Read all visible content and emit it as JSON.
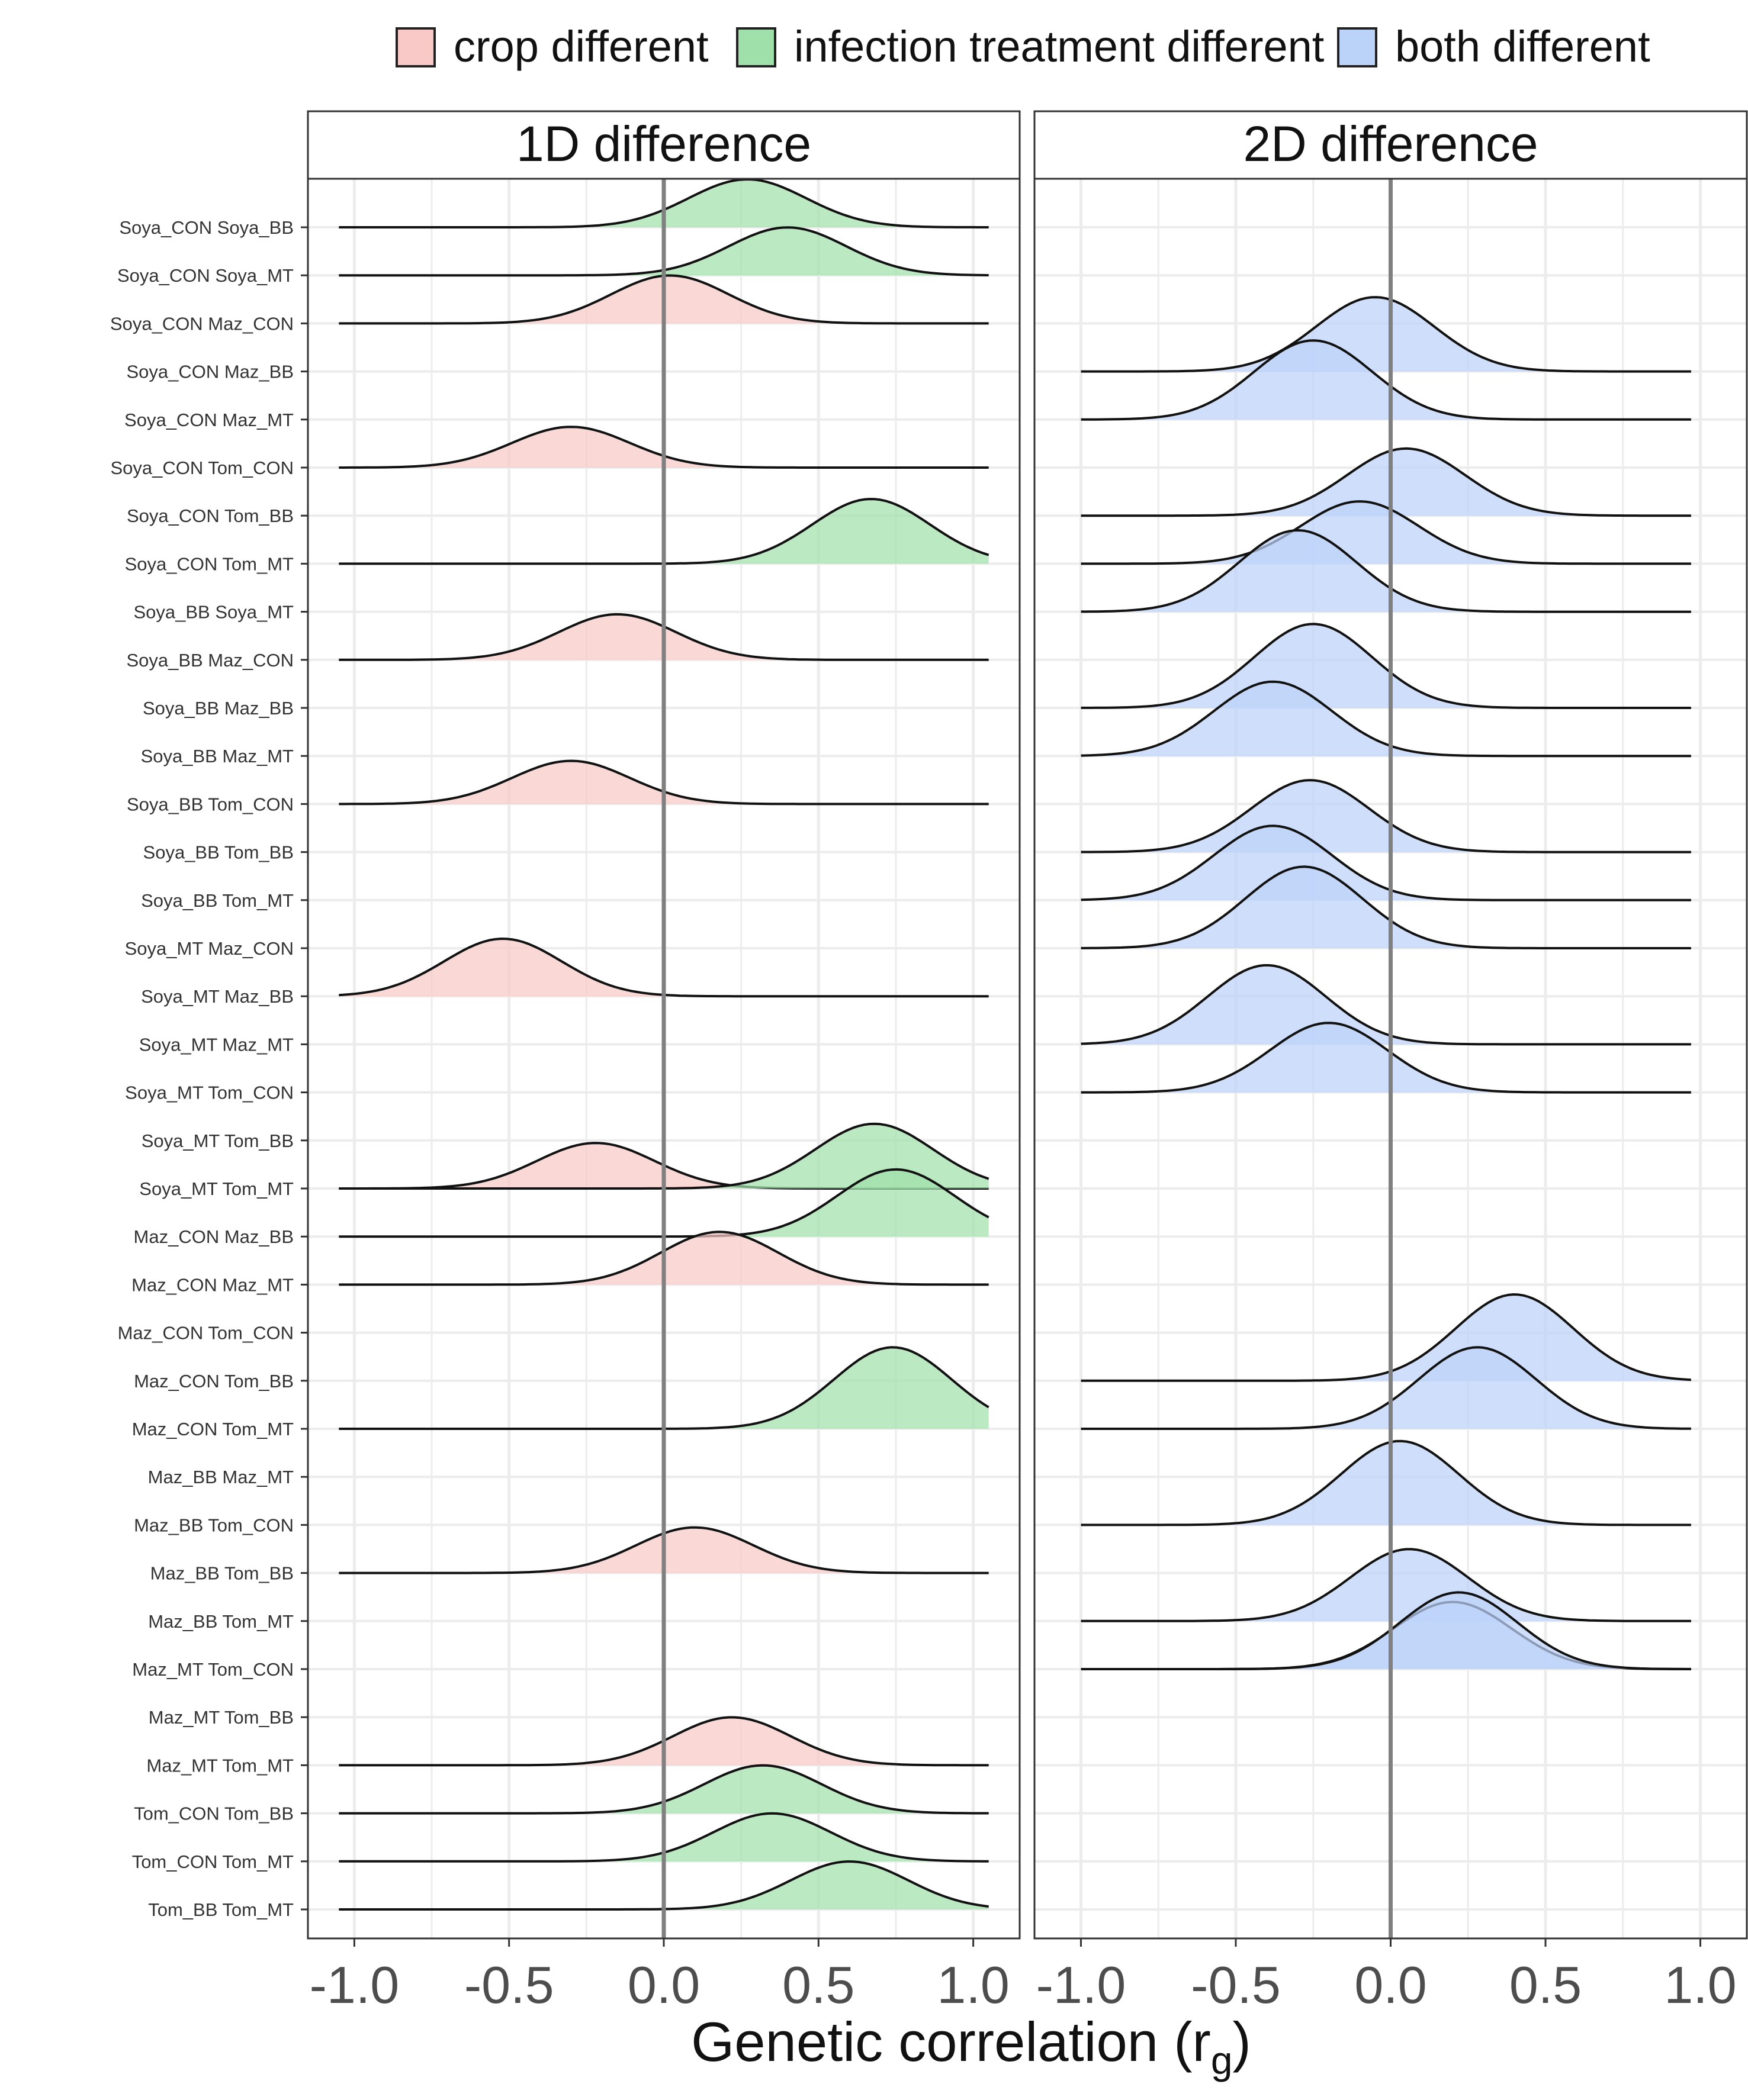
{
  "chart_data": {
    "type": "ridgeline",
    "xlabel": "Genetic correlation (r",
    "xlabel_sub": "g",
    "xlabel_close": ")",
    "xlim": [
      -1.15,
      1.15
    ],
    "x_ticks": [
      -1.0,
      -0.5,
      0.0,
      0.5,
      1.0
    ],
    "x_tick_labels": [
      "-1.0",
      "-0.5",
      "0.0",
      "0.5",
      "1.0"
    ],
    "reference_line_x": 0.0,
    "grid": true,
    "legend_position": "top",
    "legend": [
      {
        "key": "crop",
        "label": "crop different",
        "fill": "#f8c9c6"
      },
      {
        "key": "infection",
        "label": "infection treatment different",
        "fill": "#9fe0aa"
      },
      {
        "key": "both",
        "label": "both different",
        "fill": "#bcd3f9"
      }
    ],
    "panels": [
      {
        "title": "1D difference",
        "range": [
          -1.05,
          1.05
        ]
      },
      {
        "title": "2D difference",
        "range": [
          -1.0,
          0.97
        ]
      }
    ],
    "categories": [
      "Soya_CON Soya_BB",
      "Soya_CON Soya_MT",
      "Soya_CON Maz_CON",
      "Soya_CON Maz_BB",
      "Soya_CON Maz_MT",
      "Soya_CON Tom_CON",
      "Soya_CON Tom_BB",
      "Soya_CON Tom_MT",
      "Soya_BB Soya_MT",
      "Soya_BB Maz_CON",
      "Soya_BB Maz_BB",
      "Soya_BB Maz_MT",
      "Soya_BB Tom_CON",
      "Soya_BB Tom_BB",
      "Soya_BB Tom_MT",
      "Soya_MT Maz_CON",
      "Soya_MT Maz_BB",
      "Soya_MT Maz_MT",
      "Soya_MT Tom_CON",
      "Soya_MT Tom_BB",
      "Soya_MT Tom_MT",
      "Maz_CON Maz_BB",
      "Maz_CON Maz_MT",
      "Maz_CON Tom_CON",
      "Maz_CON Tom_BB",
      "Maz_CON Tom_MT",
      "Maz_BB Maz_MT",
      "Maz_BB Tom_CON",
      "Maz_BB Tom_BB",
      "Maz_BB Tom_MT",
      "Maz_MT Tom_CON",
      "Maz_MT Tom_BB",
      "Maz_MT Tom_MT",
      "Tom_CON Tom_BB",
      "Tom_CON Tom_MT",
      "Tom_BB Tom_MT"
    ],
    "series": [
      {
        "category": "Soya_CON Soya_BB",
        "panel": 0,
        "group": "infection",
        "peak": 0.27,
        "height": 1.0
      },
      {
        "category": "Soya_CON Soya_MT",
        "panel": 0,
        "group": "infection",
        "peak": 0.4,
        "height": 1.0
      },
      {
        "category": "Soya_CON Maz_CON",
        "panel": 0,
        "group": "crop",
        "peak": 0.02,
        "height": 1.0
      },
      {
        "category": "Soya_CON Maz_BB",
        "panel": 1,
        "group": "both",
        "peak": -0.05,
        "height": 1.55
      },
      {
        "category": "Soya_CON Maz_MT",
        "panel": 1,
        "group": "both",
        "peak": -0.25,
        "height": 1.65
      },
      {
        "category": "Soya_CON Tom_CON",
        "panel": 0,
        "group": "crop",
        "peak": -0.3,
        "height": 0.85
      },
      {
        "category": "Soya_CON Tom_BB",
        "panel": 1,
        "group": "both",
        "peak": 0.05,
        "height": 1.4
      },
      {
        "category": "Soya_CON Tom_MT",
        "panel": 0,
        "group": "infection",
        "peak": 0.67,
        "height": 1.35
      },
      {
        "category": "Soya_CON Tom_MT",
        "panel": 1,
        "group": "both",
        "peak": -0.1,
        "height": 1.3
      },
      {
        "category": "Soya_BB Soya_MT",
        "panel": 1,
        "group": "both",
        "peak": -0.3,
        "height": 1.7
      },
      {
        "category": "Soya_BB Maz_CON",
        "panel": 0,
        "group": "crop",
        "peak": -0.15,
        "height": 0.95
      },
      {
        "category": "Soya_BB Maz_BB",
        "panel": 1,
        "group": "both",
        "peak": -0.25,
        "height": 1.75
      },
      {
        "category": "Soya_BB Maz_MT",
        "panel": 1,
        "group": "both",
        "peak": -0.38,
        "height": 1.55
      },
      {
        "category": "Soya_BB Tom_CON",
        "panel": 0,
        "group": "crop",
        "peak": -0.3,
        "height": 0.9
      },
      {
        "category": "Soya_BB Tom_BB",
        "panel": 1,
        "group": "both",
        "peak": -0.26,
        "height": 1.5
      },
      {
        "category": "Soya_BB Tom_MT",
        "panel": 1,
        "group": "both",
        "peak": -0.38,
        "height": 1.55
      },
      {
        "category": "Soya_MT Maz_CON",
        "panel": 1,
        "group": "both",
        "peak": -0.28,
        "height": 1.7
      },
      {
        "category": "Soya_MT Maz_BB",
        "panel": 0,
        "group": "crop",
        "peak": -0.52,
        "height": 1.2
      },
      {
        "category": "Soya_MT Maz_MT",
        "panel": 1,
        "group": "both",
        "peak": -0.4,
        "height": 1.65
      },
      {
        "category": "Soya_MT Tom_CON",
        "panel": 1,
        "group": "both",
        "peak": -0.2,
        "height": 1.45
      },
      {
        "category": "Soya_MT Tom_MT",
        "panel": 0,
        "group": "crop",
        "peak": -0.22,
        "height": 0.95
      },
      {
        "category": "Soya_MT Tom_MT",
        "panel": 0,
        "group": "infection",
        "peak": 0.68,
        "height": 1.35
      },
      {
        "category": "Maz_CON Maz_BB",
        "panel": 0,
        "group": "infection",
        "peak": 0.75,
        "height": 1.4
      },
      {
        "category": "Maz_CON Maz_MT",
        "panel": 0,
        "group": "crop",
        "peak": 0.18,
        "height": 1.1
      },
      {
        "category": "Maz_CON Tom_BB",
        "panel": 1,
        "group": "both",
        "peak": 0.4,
        "height": 1.8
      },
      {
        "category": "Maz_CON Tom_MT",
        "panel": 0,
        "group": "infection",
        "peak": 0.74,
        "height": 1.7
      },
      {
        "category": "Maz_CON Tom_MT",
        "panel": 1,
        "group": "both",
        "peak": 0.28,
        "height": 1.7
      },
      {
        "category": "Maz_BB Tom_CON",
        "panel": 1,
        "group": "both",
        "peak": 0.03,
        "height": 1.75
      },
      {
        "category": "Maz_BB Tom_BB",
        "panel": 0,
        "group": "crop",
        "peak": 0.1,
        "height": 0.95
      },
      {
        "category": "Maz_BB Tom_MT",
        "panel": 1,
        "group": "both",
        "peak": 0.06,
        "height": 1.5
      },
      {
        "category": "Maz_MT Tom_CON",
        "panel": 1,
        "group": "both",
        "peak": 0.2,
        "height": 1.4
      },
      {
        "category": "Maz_MT Tom_CON",
        "panel": 1,
        "group": "both",
        "peak": 0.22,
        "height": 1.6
      },
      {
        "category": "Maz_MT Tom_MT",
        "panel": 0,
        "group": "crop",
        "peak": 0.22,
        "height": 1.0
      },
      {
        "category": "Tom_CON Tom_BB",
        "panel": 0,
        "group": "infection",
        "peak": 0.32,
        "height": 1.0
      },
      {
        "category": "Tom_CON Tom_MT",
        "panel": 0,
        "group": "infection",
        "peak": 0.35,
        "height": 1.0
      },
      {
        "category": "Tom_BB Tom_MT",
        "panel": 0,
        "group": "infection",
        "peak": 0.6,
        "height": 1.0
      }
    ]
  }
}
